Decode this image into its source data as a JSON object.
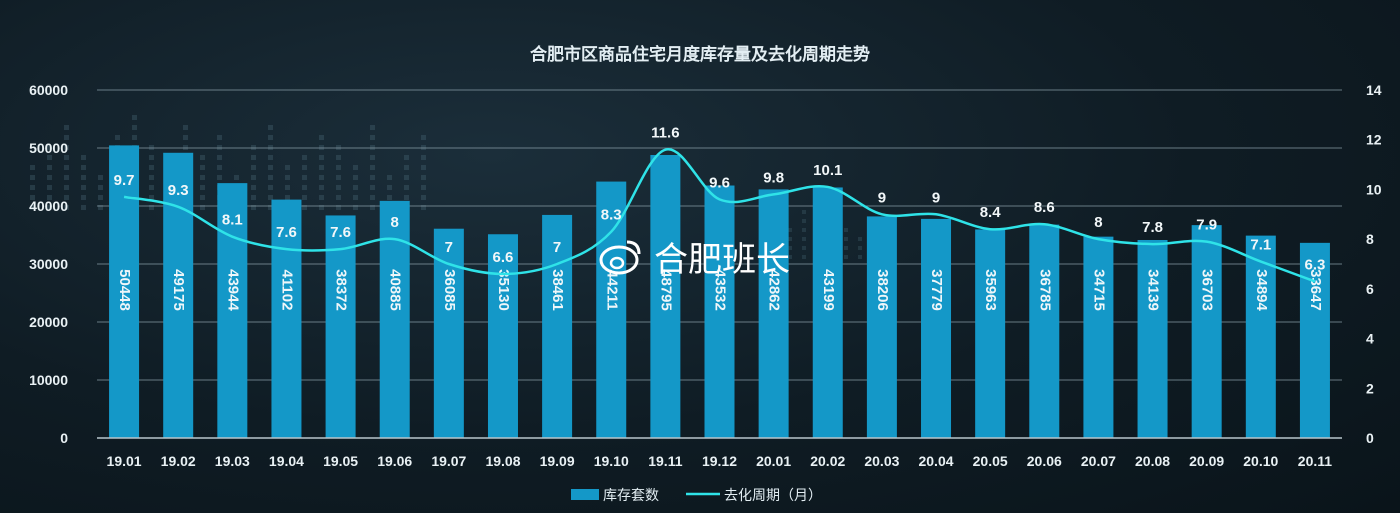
{
  "chart_data": {
    "type": "bar",
    "title": "合肥市区商品住宅月度库存量及去化周期走势",
    "categories": [
      "19.01",
      "19.02",
      "19.03",
      "19.04",
      "19.05",
      "19.06",
      "19.07",
      "19.08",
      "19.09",
      "19.10",
      "19.11",
      "19.12",
      "20.01",
      "20.02",
      "20.03",
      "20.04",
      "20.05",
      "20.06",
      "20.07",
      "20.08",
      "20.09",
      "20.10",
      "20.11"
    ],
    "series": [
      {
        "name": "库存套数",
        "type": "bar",
        "axis": "left",
        "color": "#1498c8",
        "values": [
          50448,
          49175,
          43944,
          41102,
          38372,
          40885,
          36085,
          35130,
          38461,
          44211,
          48795,
          43532,
          42862,
          43199,
          38206,
          37779,
          35963,
          36785,
          34715,
          34139,
          36703,
          34894,
          33647
        ],
        "labels": [
          "50448",
          "49175",
          "43944",
          "41102",
          "38372",
          "40885",
          "36085",
          "35130",
          "38461",
          "44211",
          "48795",
          "43532",
          "42862",
          "43199",
          "38206",
          "37779",
          "35963",
          "36785",
          "34715",
          "34139",
          "36703",
          "34894",
          "33647"
        ]
      },
      {
        "name": "去化周期（月）",
        "type": "line",
        "axis": "right",
        "color": "#2fe3e8",
        "values": [
          9.7,
          9.3,
          8.1,
          7.6,
          7.6,
          8,
          7,
          6.6,
          7,
          8.3,
          11.6,
          9.6,
          9.8,
          10.1,
          9,
          9,
          8.4,
          8.6,
          8,
          7.8,
          7.9,
          7.1,
          6.3
        ],
        "labels": [
          "9.7",
          "9.3",
          "8.1",
          "7.6",
          "7.6",
          "8",
          "7",
          "6.6",
          "7",
          "8.3",
          "11.6",
          "9.6",
          "9.8",
          "10.1",
          "9",
          "9",
          "8.4",
          "8.6",
          "8",
          "7.8",
          "7.9",
          "7.1",
          "6.3"
        ]
      }
    ],
    "y_left": {
      "min": 0,
      "max": 60000,
      "ticks": [
        "0",
        "10000",
        "20000",
        "30000",
        "40000",
        "50000",
        "60000"
      ]
    },
    "y_right": {
      "min": 0,
      "max": 14,
      "ticks": [
        "0",
        "2",
        "4",
        "6",
        "8",
        "10",
        "12",
        "14"
      ]
    },
    "grid": true,
    "legend": "bottom-center"
  },
  "watermark": "合肥班长",
  "watermark_icon": "weibo-icon"
}
